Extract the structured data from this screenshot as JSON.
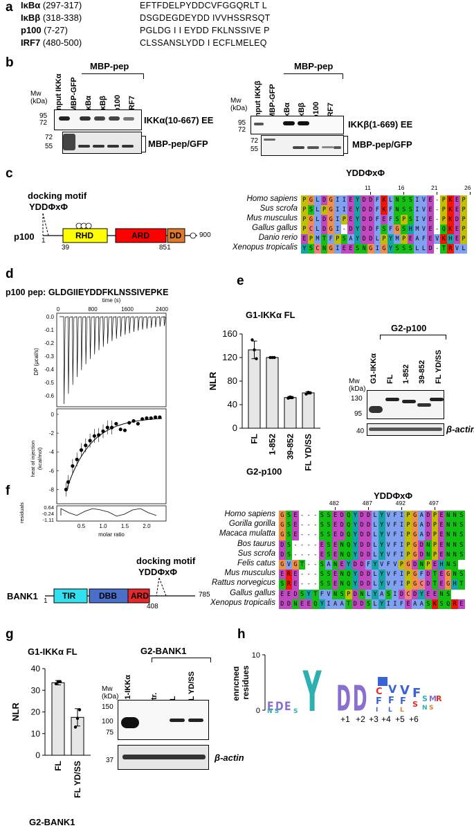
{
  "panels": [
    "a",
    "b",
    "c",
    "d",
    "e",
    "f",
    "g",
    "h"
  ],
  "panel_a": {
    "rows": [
      {
        "name": "IκBα",
        "range": "(297-317)",
        "seq": "EFTFDELPYDDCVFGGQRLT L"
      },
      {
        "name": "IκBβ",
        "range": "(318-338)",
        "seq": "DSGDEGDEYDD IVVHSSRSQT"
      },
      {
        "name": "p100",
        "range": "(7-27)",
        "seq": "PGLDG I I EYDD FKLNSSIVE P"
      },
      {
        "name": "IRF7",
        "range": "(480-500)",
        "seq": "CLSSANSLYDD I ECFLMELEQ"
      }
    ]
  },
  "panel_b": {
    "left": {
      "mw_label": "Mw\n(kDa)",
      "mw_top": [
        "95",
        "72"
      ],
      "mw_bottom": [
        "72",
        "55"
      ],
      "header": "MBP-pep",
      "lanes": [
        "Input IKKα",
        "MBP-GFP",
        "IκBα",
        "IκBβ",
        "p100",
        "IRF7"
      ],
      "top_label": "IKKα(10-667) EE",
      "bottom_label": "MBP-pep/GFP"
    },
    "right": {
      "mw_label": "Mw\n(kDa)",
      "mw_top": [
        "95",
        "72"
      ],
      "mw_bottom": [
        "72",
        "55"
      ],
      "header": "MBP-pep",
      "lanes": [
        "Input IKKβ",
        "MBP-GFP",
        "IκBα",
        "IκBβ",
        "p100",
        "IRF7"
      ],
      "top_label": "IKKβ(1-669) EE",
      "bottom_label": "MBP-pep/GFP"
    }
  },
  "panel_c": {
    "motif_label": "docking motif",
    "motif": "YDDΦxΦ",
    "protein": "p100",
    "domains": [
      "RHD",
      "ARD",
      "DD"
    ],
    "positions": [
      "1",
      "39",
      "851",
      "900"
    ],
    "aln_title": "YDDΦxΦ",
    "aln_ticks": [
      "11",
      "16",
      "21",
      "26"
    ],
    "species": [
      "Homo sapiens",
      "Sus scrofa",
      "Mus musculus",
      "Gallus gallus",
      "Danio rerio",
      "Xenopus tropicalis"
    ],
    "seqs": [
      "PGLDGIIEYDDFKLNSSIVE-PKEP",
      "PSLPGIIEYDDFKFNSSIVE-PKEP",
      "PGLDGIPEYDDFEFSPSIVE-PKDP",
      "PCLDGI-DYDDFSFGSHMVE-QKEP",
      "EPMTFPSAYDDLPYMPEAFEVKHEP",
      "YSCNGIEESNGIGYSSSLLD-TRVL"
    ]
  },
  "panel_d": {
    "title": "p100 pep: GLDGIIEYDDFKLNSSIVEPKE",
    "time_label": "time (s)",
    "time_ticks": [
      "0",
      "800",
      "1600",
      "2400"
    ],
    "dp_label": "DP (μcal/s)",
    "dp_ticks": [
      "0.0",
      "-0.1",
      "-0.2",
      "-0.3",
      "-0.4",
      "-0.5",
      "-0.6"
    ],
    "heat_label": "heat of injection\n(kcal/mol)",
    "heat_ticks": [
      "0",
      "-2",
      "-4",
      "-6",
      "-8"
    ],
    "res_label": "residuals",
    "res_ticks": [
      "0.64",
      "-0.24",
      "-1.11"
    ],
    "x_label": "molar ratio",
    "x_ticks": [
      "0.5",
      "1.0",
      "1.5",
      "2.0"
    ],
    "points": [
      [
        0.15,
        -8.0
      ],
      [
        0.2,
        -7.2
      ],
      [
        0.3,
        -5.5
      ],
      [
        0.4,
        -4.8
      ],
      [
        0.5,
        -3.8
      ],
      [
        0.6,
        -3.3
      ],
      [
        0.7,
        -2.8
      ],
      [
        0.8,
        -2.3
      ],
      [
        0.9,
        -2.2
      ],
      [
        1.0,
        -1.8
      ],
      [
        1.1,
        -1.4
      ],
      [
        1.2,
        -1.4
      ],
      [
        1.3,
        -1.0
      ],
      [
        1.4,
        -1.6
      ],
      [
        1.5,
        -1.7
      ],
      [
        1.6,
        -0.9
      ],
      [
        1.7,
        -0.7
      ],
      [
        1.8,
        -1.0
      ],
      [
        1.9,
        -0.5
      ],
      [
        2.0,
        -0.4
      ],
      [
        2.1,
        -0.4
      ],
      [
        2.2,
        -0.3
      ],
      [
        2.3,
        -0.3
      ]
    ]
  },
  "panel_e": {
    "chart_title": "G1-IKKα FL",
    "ylabel": "NLR",
    "xlabel": "G2-p100",
    "blot_header": "G2-p100",
    "blot_lanes": [
      "G1-IKKα",
      "FL",
      "1-852",
      "39-852",
      "FL YD/SS"
    ],
    "mw_label": "Mw\n(kDa)",
    "mw_ticks": [
      "130",
      "95",
      "40"
    ],
    "actin": "β-actin"
  },
  "panel_f": {
    "motif_label": "docking motif",
    "motif": "YDDΦxΦ",
    "protein": "BANK1",
    "domains": [
      "TIR",
      "DBB",
      "ARD"
    ],
    "positions": [
      "1",
      "408",
      "785"
    ],
    "aln_title": "YDDΦxΦ",
    "aln_ticks": [
      "482",
      "487",
      "492",
      "497"
    ],
    "species": [
      "Homo sapiens",
      "Gorilla gorilla",
      "Macaca mulatta",
      "Bos taurus",
      "Sus scrofa",
      "Felis catus",
      "Mus musculus",
      "Rattus norvegicus",
      "Gallus gallus",
      "Xenopus tropicalis"
    ],
    "seqs": [
      "GSE---SSEDQYDDLYVFIPGADPENNS",
      "GSE---SSEDQYDDLYVFIPGADPENNS",
      "GSE---SSEDQYDDLYVFIPGADPENNS",
      "DS----ESENQYDDLYVFIPGDNPENNS",
      "DS----ESENQYDDLYVFIPGDNPENNS",
      "GVGT--SANEYDDFYVFVPGDNPEHNS",
      "ERE---SSENQYDDLYVFIPGFDTEGNS",
      "SRE---SSENQYDDLYVFIPGCDTEGHT",
      "EEDSYTFVNSPDNLYASIDCDYEENS",
      "DDNEEQYIAATDDSLYIIFEAASKSQRE"
    ]
  },
  "panel_g": {
    "chart_title": "G1-IKKα FL",
    "ylabel": "NLR",
    "xlabel": "G2-BANK1",
    "blot_header": "G2-BANK1",
    "blot_lanes": [
      "G1-IKKα",
      "Ctr.",
      "FL",
      "FL YD/SS"
    ],
    "mw_label": "Mw\n(kDa)",
    "mw_ticks": [
      "150",
      "100",
      "75",
      "37"
    ],
    "actin": "β-actin"
  },
  "panel_h": {
    "ylabel": "enriched\nresidues",
    "y_ticks": [
      "10",
      "0"
    ],
    "positions": [
      "+1",
      "+2",
      "+3",
      "+4",
      "+5",
      "+6"
    ]
  },
  "chart_data": [
    {
      "type": "bar",
      "title": "G1-IKKα FL",
      "ylabel": "NLR",
      "xlabel": "G2-p100",
      "categories": [
        "FL",
        "1-852",
        "39-852",
        "FL YD/SS"
      ],
      "values": [
        133,
        120,
        52,
        60
      ],
      "errors": [
        15,
        1,
        2,
        2
      ],
      "points": [
        [
          150,
          133,
          118
        ],
        [
          120,
          120,
          120
        ],
        [
          51,
          53,
          52
        ],
        [
          58,
          61,
          60
        ]
      ],
      "y_ticks": [
        0,
        40,
        80,
        120,
        160
      ],
      "ylim": [
        0,
        160
      ]
    },
    {
      "type": "bar",
      "title": "G1-IKKα FL",
      "ylabel": "NLR",
      "xlabel": "G2-BANK1",
      "categories": [
        "FL",
        "FL YD/SS"
      ],
      "values": [
        33.5,
        17.5
      ],
      "errors": [
        1,
        4
      ],
      "points": [
        [
          33,
          34,
          34
        ],
        [
          13,
          17,
          21
        ]
      ],
      "y_ticks": [
        0,
        10,
        20,
        30,
        40
      ],
      "ylim": [
        0,
        40
      ]
    }
  ]
}
